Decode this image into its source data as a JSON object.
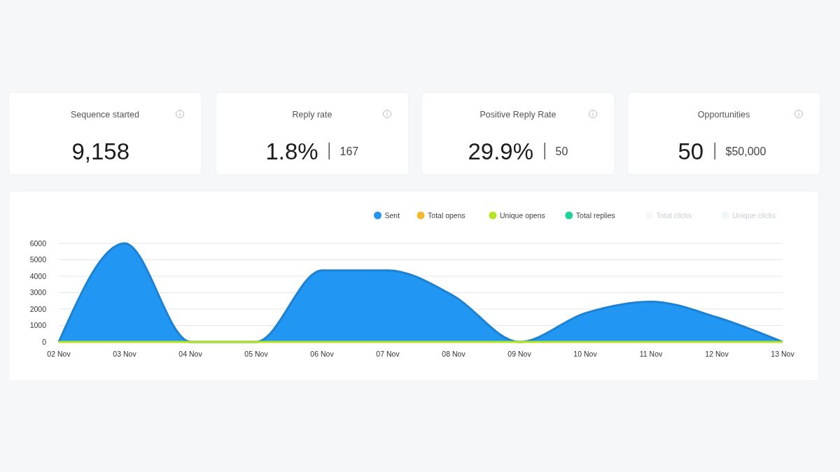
{
  "chart_data": [
    {
      "type": "other",
      "title": "Sequence started",
      "annotations": [
        "9,158"
      ]
    },
    {
      "type": "other",
      "title": "Reply rate",
      "annotations": [
        "1.8%",
        "167"
      ]
    },
    {
      "type": "other",
      "title": "Positive Reply Rate",
      "annotations": [
        "29.9%",
        "50"
      ]
    },
    {
      "type": "other",
      "title": "Opportunities",
      "annotations": [
        "50",
        "$50,000"
      ]
    },
    {
      "type": "area",
      "categories": [
        "02 Nov",
        "03 Nov",
        "04 Nov",
        "05 Nov",
        "06 Nov",
        "07 Nov",
        "08 Nov",
        "09 Nov",
        "10 Nov",
        "11 Nov",
        "12 Nov",
        "13 Nov"
      ],
      "series": [
        {
          "name": "Sent",
          "color": "#2196f3",
          "values": [
            0,
            6000,
            0,
            0,
            4350,
            4350,
            2800,
            0,
            1750,
            2450,
            1500,
            0
          ]
        },
        {
          "name": "Total opens",
          "type": "line",
          "color": "#f5b82e",
          "values": [
            null,
            null,
            null,
            null,
            null,
            null,
            null,
            null,
            null,
            null,
            null,
            null
          ]
        },
        {
          "name": "Unique opens",
          "type": "line",
          "color": "#b5e61d",
          "values": [
            0,
            0,
            0,
            0,
            0,
            0,
            0,
            0,
            0,
            0,
            0,
            0
          ]
        },
        {
          "name": "Total replies",
          "type": "line",
          "color": "#1ed39a",
          "values": [
            null,
            null,
            null,
            null,
            null,
            null,
            null,
            null,
            null,
            null,
            null,
            null
          ]
        },
        {
          "name": "Total clicks",
          "color": "#f6f7f8",
          "values": [
            null,
            null,
            null,
            null,
            null,
            null,
            null,
            null,
            null,
            null,
            null,
            null
          ]
        },
        {
          "name": "Unique clicks",
          "color": "#f3f6f9",
          "values": [
            null,
            null,
            null,
            null,
            null,
            null,
            null,
            null,
            null,
            null,
            null,
            null
          ]
        }
      ],
      "ylim": [
        0,
        6000
      ],
      "yticks": [
        0,
        1000,
        2000,
        3000,
        4000,
        5000,
        6000
      ],
      "grid": "y",
      "legend": "top right"
    }
  ]
}
